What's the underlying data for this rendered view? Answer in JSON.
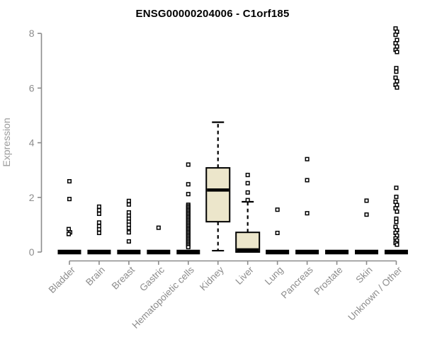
{
  "chart_data": {
    "type": "boxplot",
    "title": "ENSG00000204006 - C1orf185",
    "ylabel": "Expression",
    "xlabel": "",
    "ylim": [
      0,
      8
    ],
    "yticks": [
      0,
      2,
      4,
      6,
      8
    ],
    "grid": false,
    "legend": "none",
    "colors": {
      "box_fill": "#ECE6CB",
      "box_stroke": "#000000",
      "median": "#000000",
      "outlier_stroke": "#000000",
      "outlier_fill": "#ffffff",
      "axis": "#8C8C8C",
      "tick_label": "#8C8C8C",
      "ylabel_color": "#9B9B9B",
      "title_color": "#000000"
    },
    "categories": [
      "Bladder",
      "Brain",
      "Breast",
      "Gastric",
      "Hematopoietic cells",
      "Kidney",
      "Liver",
      "Lung",
      "Pancreas",
      "Prostate",
      "Skin",
      "Unknown / Other"
    ],
    "boxes": [
      {
        "lo": 0,
        "q1": 0,
        "med": 0,
        "q3": 0,
        "hi": 0
      },
      {
        "lo": 0,
        "q1": 0,
        "med": 0,
        "q3": 0,
        "hi": 0
      },
      {
        "lo": 0,
        "q1": 0,
        "med": 0,
        "q3": 0,
        "hi": 0
      },
      {
        "lo": 0,
        "q1": 0,
        "med": 0,
        "q3": 0,
        "hi": 0
      },
      {
        "lo": 0,
        "q1": 0,
        "med": 0,
        "q3": 0,
        "hi": 0
      },
      {
        "lo": 0.05,
        "q1": 1.11,
        "med": 2.27,
        "q3": 3.08,
        "hi": 4.75
      },
      {
        "lo": 0,
        "q1": 0,
        "med": 0.08,
        "q3": 0.72,
        "hi": 1.84
      },
      {
        "lo": 0,
        "q1": 0,
        "med": 0,
        "q3": 0,
        "hi": 0
      },
      {
        "lo": 0,
        "q1": 0,
        "med": 0,
        "q3": 0,
        "hi": 0
      },
      {
        "lo": 0,
        "q1": 0,
        "med": 0,
        "q3": 0,
        "hi": 0
      },
      {
        "lo": 0,
        "q1": 0,
        "med": 0,
        "q3": 0,
        "hi": 0
      },
      {
        "lo": 0,
        "q1": 0,
        "med": 0,
        "q3": 0,
        "hi": 0
      }
    ],
    "outliers": [
      [
        [
          2.59,
          0
        ],
        [
          1.94,
          0
        ],
        [
          0.84,
          -1
        ],
        [
          0.72,
          1
        ],
        [
          0.66,
          -1
        ]
      ],
      [
        [
          1.66,
          0
        ],
        [
          1.53,
          0
        ],
        [
          1.4,
          0
        ],
        [
          1.08,
          0
        ],
        [
          0.95,
          0
        ],
        [
          0.83,
          0
        ],
        [
          0.7,
          0
        ]
      ],
      [
        [
          1.87,
          0
        ],
        [
          1.74,
          0
        ],
        [
          1.45,
          0
        ],
        [
          1.33,
          0
        ],
        [
          1.22,
          0
        ],
        [
          1.11,
          0
        ],
        [
          1.0,
          0
        ],
        [
          0.88,
          0
        ],
        [
          0.72,
          0
        ],
        [
          0.39,
          0
        ]
      ],
      [
        [
          0.89,
          0
        ]
      ],
      [
        [
          3.2,
          0
        ],
        [
          2.48,
          0
        ],
        [
          2.12,
          0
        ],
        [
          1.73,
          0
        ],
        [
          1.68,
          0
        ],
        [
          1.63,
          0
        ],
        [
          1.58,
          0
        ],
        [
          1.53,
          0
        ],
        [
          1.48,
          0
        ],
        [
          1.43,
          0
        ],
        [
          1.38,
          0
        ],
        [
          1.33,
          0
        ],
        [
          1.28,
          0
        ],
        [
          1.23,
          0
        ],
        [
          1.18,
          0
        ],
        [
          1.13,
          0
        ],
        [
          1.08,
          0
        ],
        [
          1.03,
          0
        ],
        [
          0.98,
          0
        ],
        [
          0.93,
          0
        ],
        [
          0.88,
          0
        ],
        [
          0.83,
          0
        ],
        [
          0.78,
          0
        ],
        [
          0.73,
          0
        ],
        [
          0.68,
          0
        ],
        [
          0.63,
          0
        ],
        [
          0.58,
          0
        ],
        [
          0.53,
          0
        ],
        [
          0.48,
          0
        ],
        [
          0.43,
          0
        ],
        [
          0.38,
          0
        ],
        [
          0.33,
          0
        ],
        [
          0.28,
          0
        ],
        [
          0.23,
          0
        ],
        [
          0.18,
          0
        ]
      ],
      [],
      [
        [
          2.82,
          0
        ],
        [
          2.52,
          0
        ],
        [
          2.18,
          0
        ],
        [
          1.9,
          0
        ]
      ],
      [
        [
          1.55,
          0
        ],
        [
          0.7,
          0
        ]
      ],
      [
        [
          3.4,
          0
        ],
        [
          2.63,
          0
        ],
        [
          1.42,
          0
        ]
      ],
      [],
      [
        [
          1.88,
          0
        ],
        [
          1.37,
          0
        ]
      ],
      [
        [
          8.18,
          -1
        ],
        [
          8.06,
          1
        ],
        [
          7.95,
          -1
        ],
        [
          7.76,
          1
        ],
        [
          7.64,
          -1
        ],
        [
          7.52,
          1
        ],
        [
          7.4,
          -1
        ],
        [
          7.32,
          1
        ],
        [
          6.73,
          0
        ],
        [
          6.6,
          0
        ],
        [
          6.38,
          -1
        ],
        [
          6.25,
          1
        ],
        [
          6.12,
          -1
        ],
        [
          6.02,
          1
        ],
        [
          2.35,
          0
        ],
        [
          2.02,
          0
        ],
        [
          1.84,
          -1
        ],
        [
          1.72,
          1
        ],
        [
          1.6,
          -1
        ],
        [
          1.48,
          1
        ],
        [
          1.22,
          0
        ],
        [
          1.1,
          0
        ],
        [
          0.92,
          -1
        ],
        [
          0.8,
          1
        ],
        [
          0.7,
          -1
        ],
        [
          0.6,
          1
        ],
        [
          0.5,
          -1
        ],
        [
          0.42,
          1
        ],
        [
          0.33,
          -1
        ],
        [
          0.27,
          1
        ]
      ]
    ]
  }
}
